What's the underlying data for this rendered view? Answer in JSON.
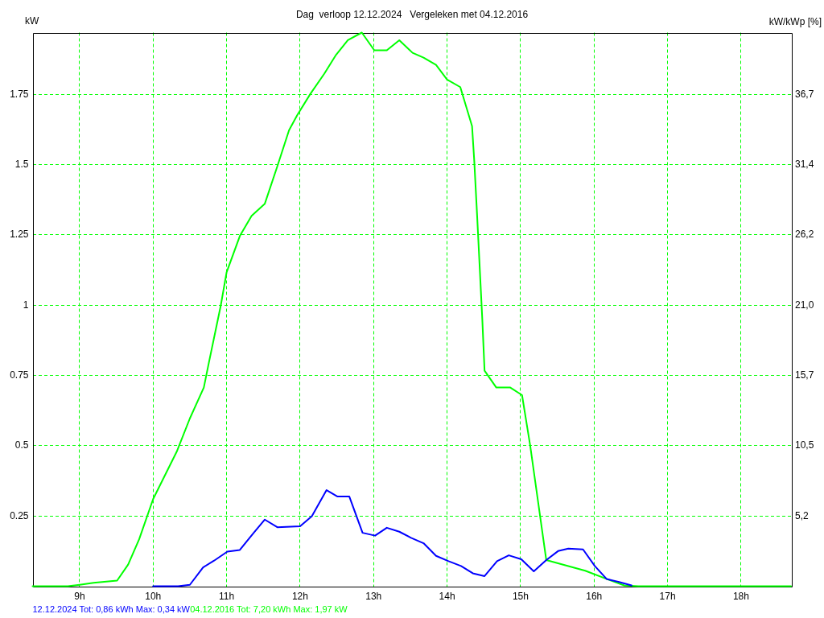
{
  "chart_data": {
    "type": "line",
    "title": "Dag  verloop 12.12.2024   Vergeleken met 04.12.2016",
    "ylabel": "kW",
    "y2label": "kW/kWp [%]",
    "series": [
      {
        "name": "12.12.2024 Tot: 0,86 kWh Max: 0,34 kW",
        "color": "#0000ff",
        "x": [
          10.0,
          10.34,
          10.5,
          10.68,
          10.83,
          11.01,
          11.18,
          11.36,
          11.52,
          11.69,
          12.0,
          12.16,
          12.36,
          12.51,
          12.67,
          12.85,
          13.02,
          13.18,
          13.35,
          13.51,
          13.68,
          13.85,
          14.02,
          14.19,
          14.35,
          14.51,
          14.68,
          14.84,
          15.01,
          15.18,
          15.35,
          15.51,
          15.65,
          15.85,
          16.01,
          16.17,
          16.34,
          16.51
        ],
        "values": [
          0,
          0,
          0.005,
          0.067,
          0.091,
          0.123,
          0.129,
          0.187,
          0.237,
          0.21,
          0.213,
          0.249,
          0.342,
          0.319,
          0.319,
          0.19,
          0.18,
          0.208,
          0.194,
          0.172,
          0.153,
          0.108,
          0.089,
          0.072,
          0.046,
          0.036,
          0.089,
          0.11,
          0.096,
          0.053,
          0.093,
          0.125,
          0.134,
          0.131,
          0.072,
          0.026,
          0.015,
          0.003
        ]
      },
      {
        "name": "04.12.2016 Tot: 7,20 kWh Max: 1,97 kW",
        "color": "#00ff00",
        "x": [
          8.36,
          8.84,
          9.0,
          9.19,
          9.51,
          9.66,
          9.81,
          10.0,
          10.32,
          10.5,
          10.69,
          10.76,
          10.92,
          11.0,
          11.18,
          11.34,
          11.52,
          11.69,
          11.85,
          11.96,
          12.14,
          12.33,
          12.49,
          12.65,
          12.84,
          13.01,
          13.18,
          13.35,
          13.53,
          13.68,
          13.85,
          14.0,
          14.18,
          14.34,
          14.37,
          14.41,
          14.48,
          14.51,
          14.67,
          14.86,
          15.02,
          15.13,
          15.35,
          15.88,
          16.19,
          16.41,
          16.6,
          18.68
        ],
        "values": [
          0,
          0,
          0.005,
          0.012,
          0.02,
          0.077,
          0.167,
          0.31,
          0.478,
          0.597,
          0.707,
          0.797,
          0.998,
          1.117,
          1.246,
          1.318,
          1.361,
          1.494,
          1.623,
          1.676,
          1.752,
          1.824,
          1.891,
          1.943,
          1.97,
          1.907,
          1.907,
          1.943,
          1.898,
          1.881,
          1.855,
          1.803,
          1.776,
          1.637,
          1.513,
          1.313,
          0.946,
          0.767,
          0.707,
          0.707,
          0.68,
          0.502,
          0.093,
          0.055,
          0.024,
          0.003,
          0,
          0
        ]
      }
    ],
    "xlim": [
      8.36,
      18.68
    ],
    "xticks": [
      {
        "value": 9,
        "label": "9h"
      },
      {
        "value": 10,
        "label": "10h"
      },
      {
        "value": 11,
        "label": "11h"
      },
      {
        "value": 12,
        "label": "12h"
      },
      {
        "value": 13,
        "label": "13h"
      },
      {
        "value": 14,
        "label": "14h"
      },
      {
        "value": 15,
        "label": "15h"
      },
      {
        "value": 16,
        "label": "16h"
      },
      {
        "value": 17,
        "label": "17h"
      },
      {
        "value": 18,
        "label": "18h"
      }
    ],
    "ylim": [
      0,
      1.97
    ],
    "yticks": [
      0.25,
      0.5,
      0.75,
      1,
      1.25,
      1.5,
      1.75
    ],
    "y2lim": [
      0,
      41.29
    ],
    "y2ticks": [
      {
        "value": 5.24,
        "label": "5,2"
      },
      {
        "value": 10.48,
        "label": "10,5"
      },
      {
        "value": 15.72,
        "label": "15,7"
      },
      {
        "value": 20.96,
        "label": "21,0"
      },
      {
        "value": 26.2,
        "label": "26,2"
      },
      {
        "value": 31.44,
        "label": "31,4"
      },
      {
        "value": 36.68,
        "label": "36,7"
      }
    ],
    "grid": true,
    "legend": "bottom left",
    "marker": "none",
    "line_style": "solid"
  }
}
